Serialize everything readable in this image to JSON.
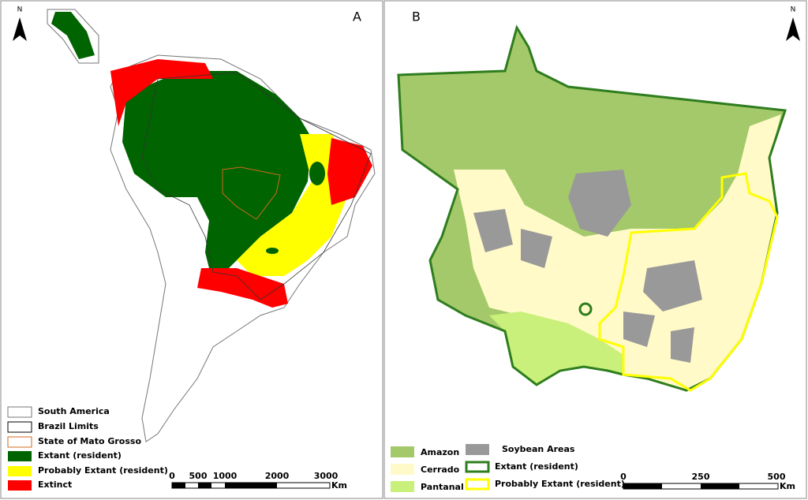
{
  "panel_a": {
    "label": "A",
    "north": "N",
    "legend": [
      "South America",
      "Brazil Limits",
      "State of Mato Grosso",
      "Extant (resident)",
      "Probably Extant (resident)",
      "Extinct"
    ],
    "scale": {
      "ticks": [
        "0",
        "500",
        "1000",
        "2000",
        "3000"
      ],
      "unit": "Km"
    }
  },
  "panel_b": {
    "label": "B",
    "north": "N",
    "legend": [
      "Amazon",
      "Cerrado",
      "Pantanal",
      "Soybean Areas",
      "Extant (resident)",
      "Probably Extant (resident)"
    ],
    "scale": {
      "ticks": [
        "0",
        "250",
        "500"
      ],
      "unit": "Km"
    }
  }
}
